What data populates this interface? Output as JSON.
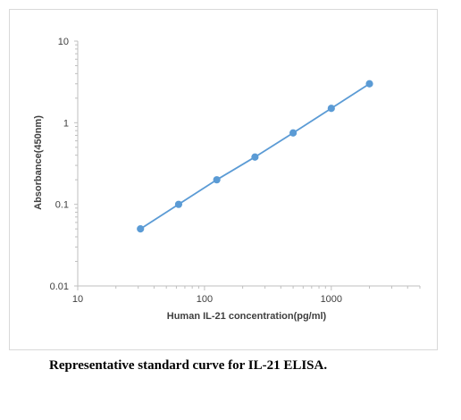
{
  "chart_data": {
    "type": "line",
    "scale": {
      "x": "log",
      "y": "log"
    },
    "xlim": [
      10,
      5000
    ],
    "ylim": [
      0.01,
      10
    ],
    "x_ticks": [
      "10",
      "100",
      "1000"
    ],
    "y_ticks": [
      "0.01",
      "0.1",
      "1",
      "10"
    ],
    "xlabel": "Human IL-21 concentration(pg/ml)",
    "ylabel": "Absorbance(450nm)",
    "grid": false,
    "legend": "none",
    "series": [
      {
        "x": [
          31.25,
          62.5,
          125,
          250,
          500,
          1000,
          2000
        ],
        "y": [
          0.05,
          0.1,
          0.2,
          0.38,
          0.75,
          1.5,
          3.0
        ],
        "color": "#5b9bd5"
      }
    ]
  },
  "caption": "Representative standard curve for IL-21 ELISA."
}
